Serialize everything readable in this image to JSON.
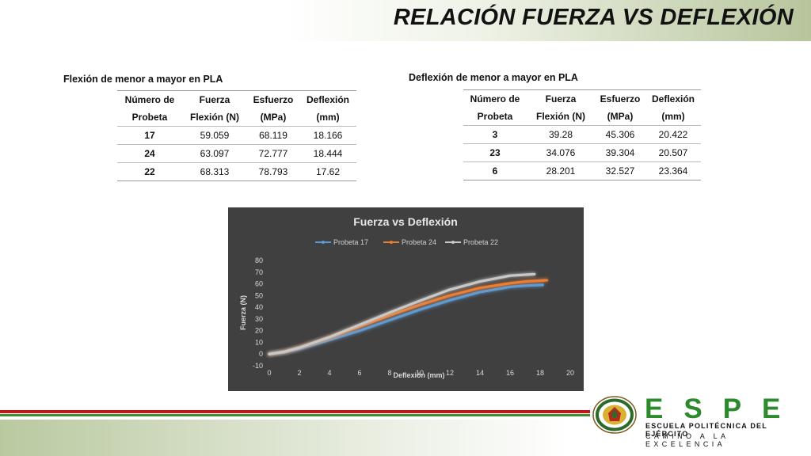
{
  "slide": {
    "title": "RELACIÓN FUERZA VS DEFLEXIÓN"
  },
  "table_left": {
    "caption": "Flexión de menor a mayor en PLA",
    "headers": [
      [
        "Número de",
        "Probeta"
      ],
      [
        "Fuerza",
        "Flexión (N)"
      ],
      [
        "Esfuerzo",
        "(MPa)"
      ],
      [
        "Deflexión",
        "(mm)"
      ]
    ],
    "rows": [
      [
        "17",
        "59.059",
        "68.119",
        "18.166"
      ],
      [
        "24",
        "63.097",
        "72.777",
        "18.444"
      ],
      [
        "22",
        "68.313",
        "78.793",
        "17.62"
      ]
    ]
  },
  "table_right": {
    "caption": "Deflexión de menor a mayor en PLA",
    "headers": [
      [
        "Número de",
        "Probeta"
      ],
      [
        "Fuerza",
        "Flexión (N)"
      ],
      [
        "Esfuerzo",
        "(MPa)"
      ],
      [
        "Deflexión",
        "(mm)"
      ]
    ],
    "rows": [
      [
        "3",
        "39.28",
        "45.306",
        "20.422"
      ],
      [
        "23",
        "34.076",
        "39.304",
        "20.507"
      ],
      [
        "6",
        "28.201",
        "32.527",
        "23.364"
      ]
    ]
  },
  "chart_data": {
    "type": "line",
    "title": "Fuerza vs Deflexión",
    "xlabel": "Deflexión (mm)",
    "ylabel": "Fuerza (N)",
    "xlim": [
      0,
      20
    ],
    "ylim": [
      -10,
      80
    ],
    "xticks": [
      0,
      2,
      4,
      6,
      8,
      10,
      12,
      14,
      16,
      18,
      20
    ],
    "yticks": [
      -10,
      0,
      10,
      20,
      30,
      40,
      50,
      60,
      70,
      80
    ],
    "legend_position": "top",
    "grid": false,
    "series": [
      {
        "name": "Probeta 17",
        "color": "#5b9bd5",
        "x": [
          0,
          1,
          2,
          4,
          6,
          8,
          10,
          12,
          14,
          16,
          17,
          18.166
        ],
        "y": [
          0,
          1.5,
          4.5,
          12,
          20,
          29,
          38,
          46,
          53,
          57.5,
          58.5,
          59.059
        ]
      },
      {
        "name": "Probeta 24",
        "color": "#ed7d31",
        "x": [
          0,
          1,
          2,
          4,
          6,
          8,
          10,
          12,
          14,
          16,
          17,
          18.444
        ],
        "y": [
          0,
          2,
          5.5,
          14,
          23.5,
          33,
          42,
          50,
          56.5,
          60.5,
          62,
          63.097
        ]
      },
      {
        "name": "Probeta 22",
        "color": "#c8c8c8",
        "x": [
          0,
          1,
          2,
          4,
          6,
          8,
          10,
          12,
          14,
          16,
          17.62
        ],
        "y": [
          0,
          2,
          5.5,
          14.5,
          25,
          35.5,
          45.5,
          55,
          62,
          67,
          68.313
        ]
      }
    ]
  },
  "logo": {
    "word": "ESPE",
    "line1": "ESCUELA POLITÉCNICA DEL EJÉRCITO",
    "line2": "CAMINO A LA EXCELENCIA"
  }
}
